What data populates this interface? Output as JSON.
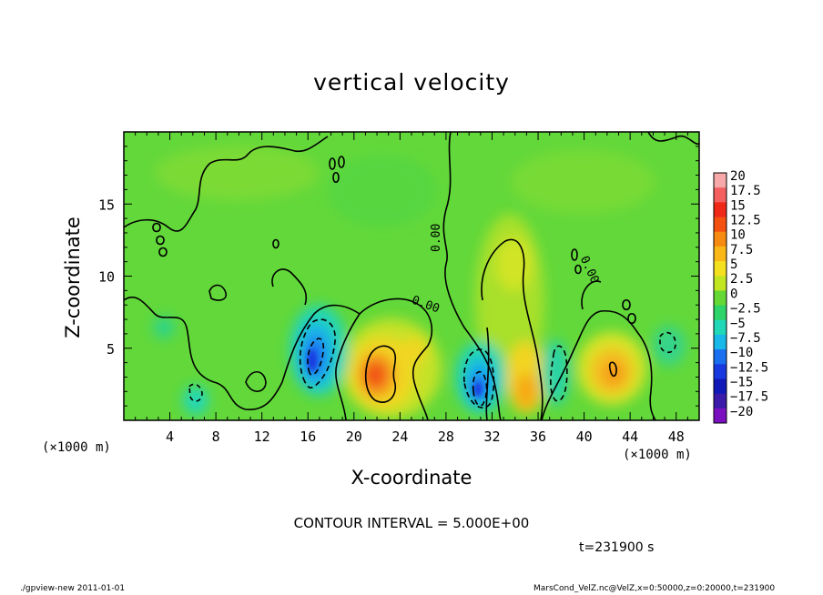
{
  "chart_data": {
    "type": "heatmap",
    "title": "vertical velocity",
    "xlabel": "X-coordinate",
    "ylabel": "Z-coordinate",
    "x_unit_label": "(×1000 m)",
    "y_unit_label": "(×1000 m)",
    "xlim": [
      0,
      50
    ],
    "ylim": [
      0,
      20
    ],
    "x_ticks": [
      4,
      8,
      12,
      16,
      20,
      24,
      28,
      32,
      36,
      40,
      44,
      48
    ],
    "y_ticks": [
      5,
      10,
      15
    ],
    "contour_interval_text": "CONTOUR INTERVAL = 5.000E+00",
    "contour_label": "0.00",
    "time_text": "t=231900 s",
    "colorbar": {
      "levels": [
        "20",
        "17.5",
        "15",
        "12.5",
        "10",
        "7.5",
        "5",
        "2.5",
        "0",
        "−2.5",
        "−5",
        "−7.5",
        "−10",
        "−12.5",
        "−15",
        "−17.5",
        "−20"
      ],
      "colors": [
        "#f7a8a8",
        "#f46060",
        "#f02818",
        "#f45010",
        "#f78a10",
        "#fab818",
        "#f5e020",
        "#c2e622",
        "#66d836",
        "#2ed46a",
        "#20d8b8",
        "#18b8e8",
        "#1a6ef0",
        "#1838e0",
        "#1018b8",
        "#3a1aa8",
        "#7a10c0"
      ]
    },
    "features": [
      {
        "kind": "updraft",
        "x": 21.8,
        "z": 3.2,
        "peak": 12
      },
      {
        "kind": "updraft",
        "x": 34.2,
        "z": 3.5,
        "peak": 7.5
      },
      {
        "kind": "updraft",
        "x": 42.8,
        "z": 3.2,
        "peak": 7.5
      },
      {
        "kind": "downdraft",
        "x": 16.4,
        "z": 4.5,
        "peak": -12
      },
      {
        "kind": "downdraft",
        "x": 30.5,
        "z": 2.5,
        "peak": -12
      },
      {
        "kind": "downdraft",
        "x": 6.5,
        "z": 1.5,
        "peak": -5
      }
    ]
  },
  "footer": {
    "left": "./gpview-new   2011-01-01",
    "right": "MarsCond_VelZ.nc@VelZ,x=0:50000,z=0:20000,t=231900"
  }
}
